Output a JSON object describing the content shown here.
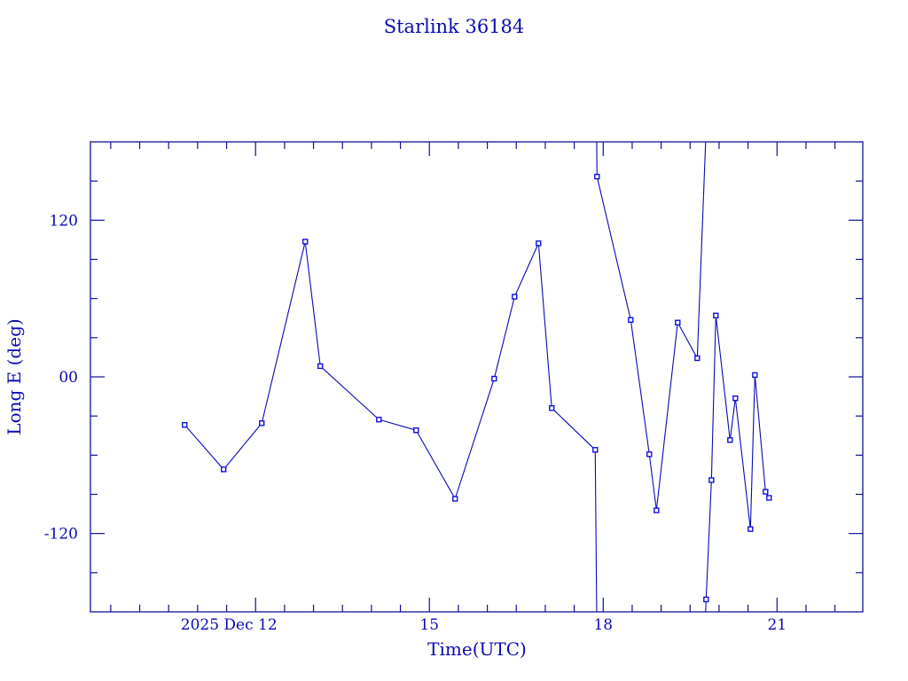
{
  "chart_data": {
    "type": "line",
    "title": "Starlink 36184",
    "xlabel": "Time(UTC)",
    "ylabel": "Long E (deg)",
    "xlim": [
      9.15,
      22.48
    ],
    "ylim": [
      -180,
      180
    ],
    "x_unit": "day of December 2025",
    "xticks": [
      12,
      15,
      18,
      21
    ],
    "xtick_labels": [
      "2025 Dec 12",
      "15",
      "18",
      "21"
    ],
    "yticks": [
      120,
      0,
      -120
    ],
    "ytick_labels": [
      "120",
      "00",
      "-120"
    ],
    "grid": false,
    "wraps_at": [
      -180,
      180
    ],
    "color": "#0a0ab4",
    "axis_color": "#10109a",
    "x": [
      10.776,
      11.449,
      12.107,
      12.857,
      13.117,
      14.128,
      14.771,
      15.444,
      16.118,
      16.47,
      16.883,
      17.112,
      17.862,
      17.893,
      18.475,
      18.796,
      18.919,
      19.286,
      19.623,
      19.776,
      19.868,
      19.944,
      20.189,
      20.281,
      20.541,
      20.618,
      20.801,
      20.862
    ],
    "y": [
      -36.8,
      -70.9,
      -35.5,
      103.6,
      8.2,
      -32.7,
      -40.9,
      -93.4,
      -1.4,
      61.4,
      102.3,
      -23.9,
      -55.9,
      153.4,
      43.6,
      -59.3,
      -102.3,
      41.6,
      14.3,
      -170.5,
      -79.1,
      47.0,
      -48.4,
      -16.4,
      -116.6,
      1.4,
      -88.0,
      -92.7
    ]
  }
}
